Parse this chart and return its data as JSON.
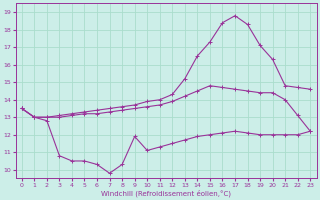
{
  "xlabel": "Windchill (Refroidissement éolien,°C)",
  "ylabel": "",
  "xlim": [
    -0.5,
    23.5
  ],
  "ylim": [
    9.5,
    19.5
  ],
  "yticks": [
    10,
    11,
    12,
    13,
    14,
    15,
    16,
    17,
    18,
    19
  ],
  "xticks": [
    0,
    1,
    2,
    3,
    4,
    5,
    6,
    7,
    8,
    9,
    10,
    11,
    12,
    13,
    14,
    15,
    16,
    17,
    18,
    19,
    20,
    21,
    22,
    23
  ],
  "bg_color": "#cceee8",
  "grid_color": "#aaddcc",
  "line_color": "#993399",
  "line1_x": [
    0,
    1,
    2,
    3,
    4,
    5,
    6,
    7,
    8,
    9,
    10,
    11,
    12,
    13,
    14,
    15,
    16,
    17,
    18,
    19,
    20,
    21,
    22,
    23
  ],
  "line1_y": [
    13.5,
    13.0,
    12.8,
    10.8,
    10.5,
    10.5,
    10.3,
    9.8,
    10.3,
    11.9,
    11.1,
    11.3,
    11.5,
    11.7,
    11.9,
    12.0,
    12.1,
    12.2,
    12.1,
    12.0,
    12.0,
    12.0,
    12.0,
    12.2
  ],
  "line2_x": [
    0,
    1,
    2,
    3,
    4,
    5,
    6,
    7,
    8,
    9,
    10,
    11,
    12,
    13,
    14,
    15,
    16,
    17,
    18,
    19,
    20,
    21,
    22,
    23
  ],
  "line2_y": [
    13.5,
    13.0,
    13.0,
    13.0,
    13.1,
    13.2,
    13.2,
    13.3,
    13.4,
    13.5,
    13.6,
    13.7,
    13.9,
    14.2,
    14.5,
    14.8,
    14.7,
    14.6,
    14.5,
    14.4,
    14.4,
    14.0,
    13.1,
    12.2
  ],
  "line3_x": [
    0,
    1,
    2,
    3,
    4,
    5,
    6,
    7,
    8,
    9,
    10,
    11,
    12,
    13,
    14,
    15,
    16,
    17,
    18,
    19,
    20,
    21,
    22,
    23
  ],
  "line3_y": [
    13.5,
    13.0,
    13.0,
    13.1,
    13.2,
    13.3,
    13.4,
    13.5,
    13.6,
    13.7,
    13.9,
    14.0,
    14.3,
    15.2,
    16.5,
    17.3,
    18.4,
    18.8,
    18.3,
    17.1,
    16.3,
    14.8,
    14.7,
    14.6
  ]
}
